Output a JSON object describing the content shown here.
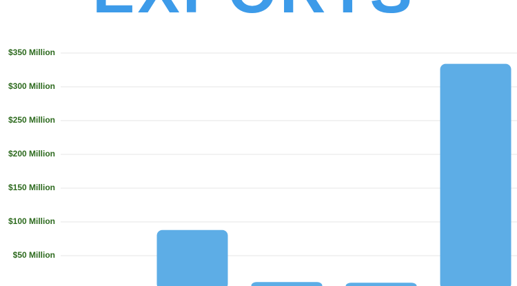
{
  "chart_data": {
    "type": "bar",
    "title": "EXPORTS",
    "categories": [
      null,
      null,
      null,
      null
    ],
    "values": [
      88,
      11,
      10,
      334
    ],
    "color": "#5dade6",
    "ylim": [
      0,
      350
    ],
    "yticks": [
      {
        "value": 50,
        "label": "$50 Million"
      },
      {
        "value": 100,
        "label": "$100 Million"
      },
      {
        "value": 150,
        "label": "$150 Million"
      },
      {
        "value": 200,
        "label": "$200 Million"
      },
      {
        "value": 250,
        "label": "$250 Million"
      },
      {
        "value": 300,
        "label": "$300 Million"
      },
      {
        "value": 350,
        "label": "$350 Million"
      }
    ],
    "grid": true
  }
}
